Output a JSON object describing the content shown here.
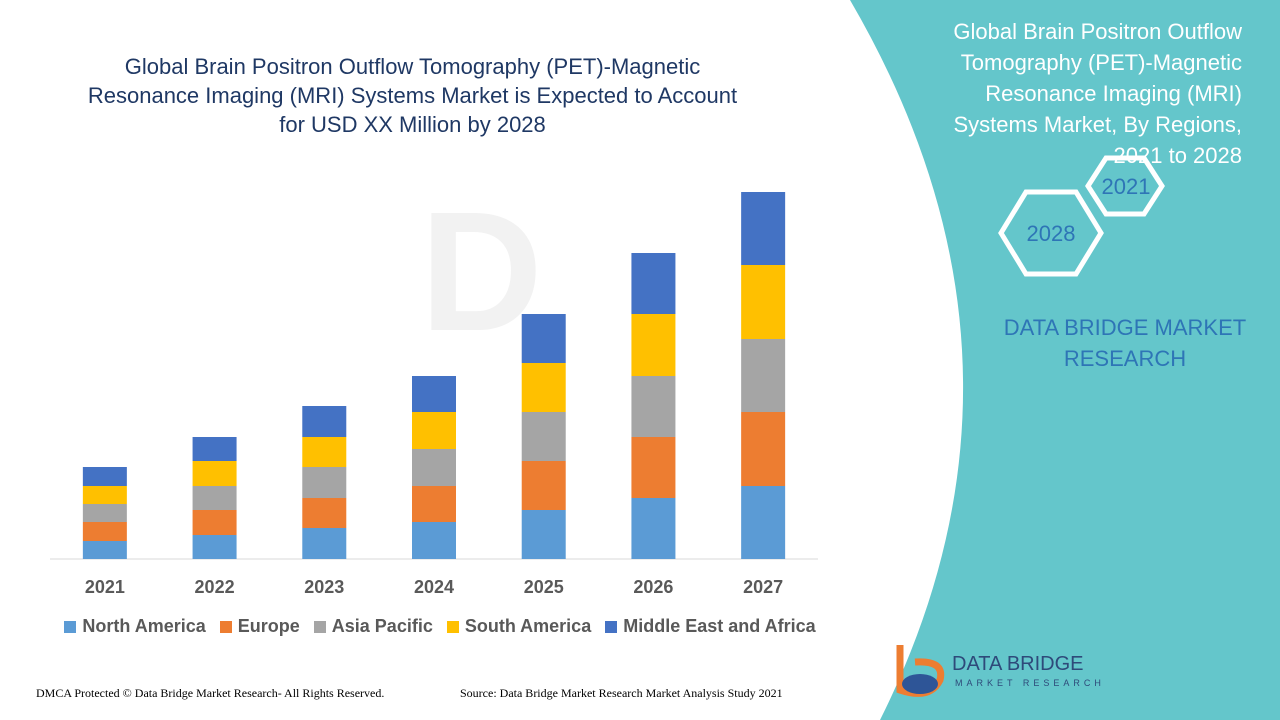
{
  "chart_data": {
    "type": "bar",
    "stacked": true,
    "title": "Global Brain Positron Outflow Tomography (PET)-Magnetic Resonance Imaging (MRI) Systems Market is Expected to Account for USD XX Million by 2028",
    "categories": [
      "2021",
      "2022",
      "2023",
      "2024",
      "2025",
      "2026",
      "2027"
    ],
    "series": [
      {
        "name": "North America",
        "color": "#5b9bd5",
        "values": [
          18,
          24,
          31,
          37,
          49,
          61,
          73
        ]
      },
      {
        "name": "Europe",
        "color": "#ed7d31",
        "values": [
          19,
          25,
          30,
          36,
          49,
          61,
          74
        ]
      },
      {
        "name": "Asia Pacific",
        "color": "#a5a5a5",
        "values": [
          18,
          24,
          31,
          37,
          49,
          61,
          73
        ]
      },
      {
        "name": "South America",
        "color": "#ffc000",
        "values": [
          18,
          25,
          30,
          37,
          49,
          62,
          74
        ]
      },
      {
        "name": "Middle East and Africa",
        "color": "#4472c4",
        "values": [
          19,
          24,
          31,
          36,
          49,
          61,
          73
        ]
      }
    ],
    "ylim": [
      0,
      400
    ]
  },
  "side_panel": {
    "title": "Global Brain Positron Outflow Tomography (PET)-Magnetic Resonance Imaging (MRI) Systems Market, By Regions, 2021 to 2028",
    "hex_start": "2021",
    "hex_end": "2028",
    "brand": "DATA BRIDGE MARKET RESEARCH"
  },
  "logo": {
    "name": "DATA BRIDGE",
    "tagline": "MARKET RESEARCH"
  },
  "footer": {
    "dmca": "DMCA Protected © Data Bridge Market Research- All Rights Reserved.",
    "source": "Source: Data Bridge Market Research Market Analysis Study 2021"
  }
}
